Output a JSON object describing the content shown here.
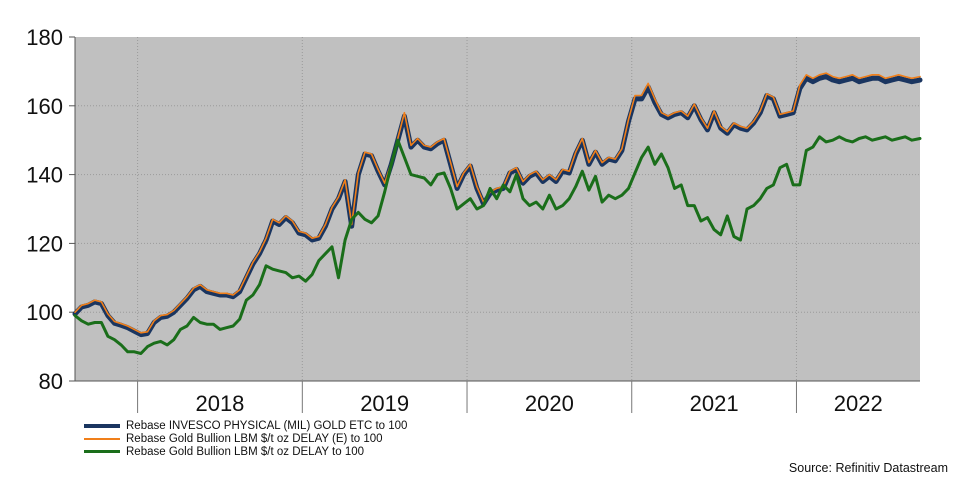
{
  "chart_data": {
    "type": "line",
    "title": "",
    "xlabel": "",
    "ylabel": "",
    "ylim": [
      80,
      180
    ],
    "yticks": [
      80,
      100,
      120,
      140,
      160,
      180
    ],
    "xlim": [
      2017.62,
      2022.75
    ],
    "year_labels": [
      "2018",
      "2019",
      "2020",
      "2021",
      "2022"
    ],
    "grid": true,
    "legend_position": "bottom-left",
    "x": [
      2017.62,
      2017.66,
      2017.7,
      2017.74,
      2017.78,
      2017.82,
      2017.86,
      2017.9,
      2017.94,
      2017.98,
      2018.02,
      2018.06,
      2018.1,
      2018.14,
      2018.18,
      2018.22,
      2018.26,
      2018.3,
      2018.34,
      2018.38,
      2018.42,
      2018.46,
      2018.5,
      2018.54,
      2018.58,
      2018.62,
      2018.66,
      2018.7,
      2018.74,
      2018.78,
      2018.82,
      2018.86,
      2018.9,
      2018.94,
      2018.98,
      2019.02,
      2019.06,
      2019.1,
      2019.14,
      2019.18,
      2019.22,
      2019.26,
      2019.3,
      2019.34,
      2019.38,
      2019.42,
      2019.46,
      2019.5,
      2019.54,
      2019.58,
      2019.62,
      2019.66,
      2019.7,
      2019.74,
      2019.78,
      2019.82,
      2019.86,
      2019.9,
      2019.94,
      2019.98,
      2020.02,
      2020.06,
      2020.1,
      2020.14,
      2020.18,
      2020.22,
      2020.26,
      2020.3,
      2020.34,
      2020.38,
      2020.42,
      2020.46,
      2020.5,
      2020.54,
      2020.58,
      2020.62,
      2020.66,
      2020.7,
      2020.74,
      2020.78,
      2020.82,
      2020.86,
      2020.9,
      2020.94,
      2020.98,
      2021.02,
      2021.06,
      2021.1,
      2021.14,
      2021.18,
      2021.22,
      2021.26,
      2021.3,
      2021.34,
      2021.38,
      2021.42,
      2021.46,
      2021.5,
      2021.54,
      2021.58,
      2021.62,
      2021.66,
      2021.7,
      2021.74,
      2021.78,
      2021.82,
      2021.86,
      2021.9,
      2021.94,
      2021.98,
      2022.02,
      2022.06,
      2022.1,
      2022.14,
      2022.18,
      2022.22,
      2022.26,
      2022.3,
      2022.34,
      2022.38,
      2022.42,
      2022.46,
      2022.5,
      2022.54,
      2022.58,
      2022.62,
      2022.66,
      2022.7,
      2022.75
    ],
    "series": [
      {
        "name": "Rebase INVESCO PHYSICAL (MIL) GOLD ETC to 100",
        "color": "#1a3560",
        "values": [
          99.5,
          101.5,
          102.0,
          103.0,
          102.5,
          99.0,
          96.8,
          96.2,
          95.5,
          94.5,
          93.5,
          93.8,
          97.0,
          98.5,
          98.8,
          100.0,
          102.0,
          104.0,
          106.5,
          107.5,
          106.0,
          105.5,
          105.0,
          105.0,
          104.5,
          106.0,
          110.0,
          114.0,
          117.0,
          121.0,
          126.5,
          125.5,
          127.5,
          126.0,
          123.0,
          122.5,
          121.0,
          121.5,
          125.0,
          130.0,
          133.0,
          138.0,
          125.0,
          140.0,
          146.0,
          145.5,
          141.0,
          137.0,
          143.0,
          150.0,
          157.0,
          148.0,
          150.0,
          148.0,
          147.5,
          149.0,
          150.0,
          143.0,
          136.0,
          140.0,
          142.5,
          136.0,
          131.5,
          134.5,
          135.5,
          136.0,
          140.5,
          141.5,
          137.5,
          139.5,
          140.5,
          138.0,
          139.5,
          138.0,
          141.0,
          140.5,
          146.0,
          150.0,
          143.0,
          146.5,
          143.0,
          144.5,
          144.0,
          147.0,
          155.5,
          162.0,
          162.0,
          165.5,
          161.0,
          157.5,
          156.5,
          157.5,
          158.0,
          156.5,
          160.0,
          156.0,
          153.0,
          158.0,
          153.5,
          152.0,
          154.5,
          153.5,
          153.0,
          155.0,
          158.0,
          163.0,
          162.0,
          157.0,
          157.5,
          158.0,
          165.0,
          168.0,
          167.0,
          168.0,
          168.5,
          167.5,
          167.0,
          167.5,
          168.0,
          167.0,
          167.5,
          168.0,
          168.0,
          167.0,
          167.5,
          168.0,
          167.5,
          167.0,
          167.5
        ]
      },
      {
        "name": "Rebase Gold Bullion LBM $/t oz DELAY (E) to 100",
        "color": "#f07f1a",
        "values": [
          100.0,
          102.0,
          102.5,
          103.5,
          103.0,
          99.5,
          97.3,
          96.7,
          96.0,
          95.0,
          94.0,
          94.3,
          97.5,
          99.0,
          99.3,
          100.5,
          102.5,
          104.5,
          107.0,
          108.0,
          106.5,
          106.0,
          105.5,
          105.5,
          105.0,
          106.5,
          110.5,
          114.5,
          117.5,
          121.5,
          127.0,
          126.0,
          128.0,
          126.5,
          123.5,
          123.0,
          121.5,
          122.0,
          125.5,
          130.5,
          133.5,
          138.5,
          125.5,
          140.5,
          146.5,
          146.0,
          141.5,
          137.5,
          143.5,
          150.5,
          158.0,
          148.5,
          150.5,
          148.5,
          148.0,
          149.5,
          150.5,
          143.5,
          136.5,
          140.5,
          143.0,
          136.5,
          132.0,
          135.0,
          136.0,
          136.5,
          141.0,
          142.0,
          138.0,
          140.0,
          141.0,
          138.5,
          140.0,
          138.5,
          141.5,
          141.0,
          146.5,
          150.5,
          143.5,
          147.0,
          143.5,
          145.0,
          144.5,
          147.5,
          156.0,
          163.0,
          163.0,
          166.5,
          162.0,
          158.0,
          157.0,
          158.0,
          158.5,
          157.0,
          160.5,
          156.5,
          153.5,
          158.5,
          154.0,
          152.5,
          155.0,
          154.0,
          153.5,
          155.5,
          158.5,
          163.5,
          162.5,
          157.5,
          158.0,
          158.5,
          166.0,
          169.0,
          168.0,
          169.0,
          169.5,
          168.5,
          168.0,
          168.5,
          169.0,
          168.0,
          168.5,
          169.0,
          169.0,
          168.0,
          168.5,
          169.0,
          168.5,
          168.0,
          168.5
        ]
      },
      {
        "name": "Rebase Gold Bullion LBM $/t oz DELAY to 100",
        "color": "#1a6e1a",
        "values": [
          99.0,
          97.5,
          96.5,
          97.0,
          97.0,
          93.0,
          92.0,
          90.5,
          88.5,
          88.5,
          88.0,
          90.0,
          91.0,
          91.5,
          90.5,
          92.0,
          95.0,
          96.0,
          98.5,
          97.0,
          96.5,
          96.5,
          95.0,
          95.5,
          96.0,
          98.0,
          103.5,
          105.0,
          108.0,
          113.5,
          112.5,
          112.0,
          111.5,
          110.0,
          110.5,
          109.0,
          111.0,
          115.0,
          117.0,
          119.0,
          110.0,
          121.0,
          127.0,
          129.0,
          127.0,
          126.0,
          128.0,
          135.0,
          143.0,
          150.0,
          145.0,
          140.0,
          139.5,
          139.0,
          137.0,
          140.0,
          140.5,
          136.0,
          130.0,
          131.5,
          133.0,
          130.0,
          131.0,
          136.0,
          133.0,
          137.0,
          135.0,
          140.0,
          133.0,
          131.0,
          132.0,
          130.0,
          134.0,
          130.0,
          131.0,
          133.0,
          136.5,
          141.0,
          135.5,
          139.5,
          132.0,
          134.0,
          133.0,
          134.0,
          136.0,
          140.5,
          145.0,
          148.0,
          143.0,
          146.0,
          142.0,
          136.0,
          137.0,
          131.0,
          131.0,
          126.5,
          127.5,
          124.0,
          122.5,
          128.0,
          122.0,
          121.0,
          130.0,
          131.0,
          133.0,
          136.0,
          137.0,
          142.0,
          143.0,
          137.0,
          137.0,
          147.0,
          148.0,
          151.0,
          149.5,
          150.0,
          151.0,
          150.0,
          149.5,
          150.5,
          151.0,
          150.0,
          150.5,
          151.0,
          150.0,
          150.5,
          151.0,
          150.0,
          150.5
        ]
      }
    ]
  },
  "legend": [
    {
      "label": "Rebase INVESCO PHYSICAL (MIL) GOLD ETC to 100",
      "color": "#1a3560"
    },
    {
      "label": "Rebase Gold Bullion LBM $/t oz DELAY (E) to 100",
      "color": "#f07f1a"
    },
    {
      "label": "Rebase Gold Bullion LBM $/t oz DELAY to 100",
      "color": "#1a6e1a"
    }
  ],
  "source": "Source: Refinitiv Datastream",
  "colors": {
    "plot_background": "#c0c0c0",
    "grid": "#9a9a9a"
  }
}
